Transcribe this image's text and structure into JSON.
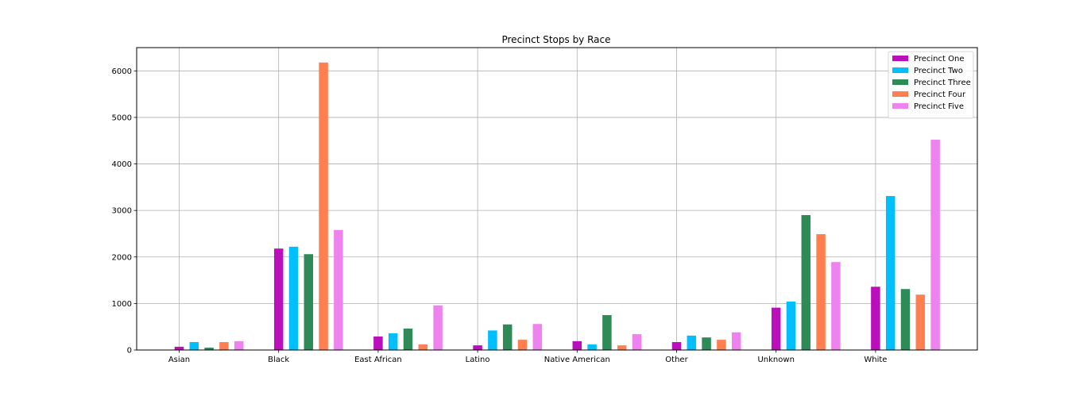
{
  "chart_data": {
    "type": "bar",
    "title": "Precinct Stops by Race",
    "xlabel": "",
    "ylabel": "",
    "ylim": [
      0,
      6500
    ],
    "yticks": [
      0,
      1000,
      2000,
      3000,
      4000,
      5000,
      6000
    ],
    "grid": true,
    "legend_position": "top-right",
    "categories": [
      "Asian",
      "Black",
      "East African",
      "Latino",
      "Native American",
      "Other",
      "Unknown",
      "White"
    ],
    "series": [
      {
        "name": "Precinct One",
        "color": "#BA0FBA",
        "values": [
          70,
          2180,
          290,
          100,
          190,
          170,
          910,
          1360
        ]
      },
      {
        "name": "Precinct Two",
        "color": "#00BFFF",
        "values": [
          170,
          2220,
          360,
          420,
          120,
          310,
          1040,
          3310
        ]
      },
      {
        "name": "Precinct Three",
        "color": "#2E8B57",
        "values": [
          50,
          2060,
          460,
          550,
          750,
          270,
          2900,
          1310
        ]
      },
      {
        "name": "Precinct Four",
        "color": "#FF7F50",
        "values": [
          170,
          6180,
          120,
          220,
          100,
          220,
          2490,
          1190
        ]
      },
      {
        "name": "Precinct Five",
        "color": "#EE82EE",
        "values": [
          190,
          2580,
          960,
          560,
          340,
          380,
          1890,
          4520
        ]
      }
    ]
  }
}
